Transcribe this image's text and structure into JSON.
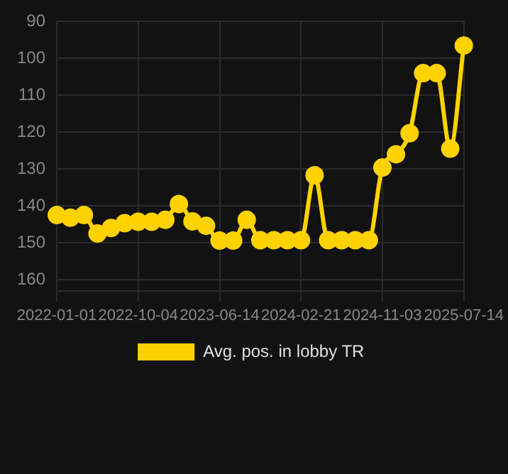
{
  "chart_data": {
    "type": "line",
    "categories": [
      "2022-01-01",
      null,
      null,
      null,
      null,
      null,
      "2022-10-04",
      null,
      null,
      null,
      null,
      null,
      "2023-06-14",
      null,
      null,
      null,
      null,
      null,
      "2024-02-21",
      null,
      null,
      null,
      null,
      null,
      "2024-11-03",
      null,
      null,
      null,
      null,
      null,
      "2025-07-14"
    ],
    "series": [
      {
        "name": "Avg. pos. in lobby TR",
        "color": "#ffd200",
        "values": [
          142.5,
          143.2,
          142.5,
          147.5,
          146,
          144.7,
          144.3,
          144.3,
          143.8,
          139.5,
          144.2,
          145.4,
          149.4,
          149.4,
          143.8,
          149.3,
          149.3,
          149.3,
          149.3,
          131.7,
          149.3,
          149.3,
          149.3,
          149.3,
          129.6,
          126,
          120.3,
          104,
          104,
          124.5,
          96.5
        ]
      }
    ],
    "ylim": [
      163,
      90
    ],
    "yticks": [
      90,
      100,
      110,
      120,
      130,
      140,
      150,
      160
    ],
    "grid": true,
    "legend": "bottom",
    "marker": "circle",
    "line_style": "solid"
  }
}
